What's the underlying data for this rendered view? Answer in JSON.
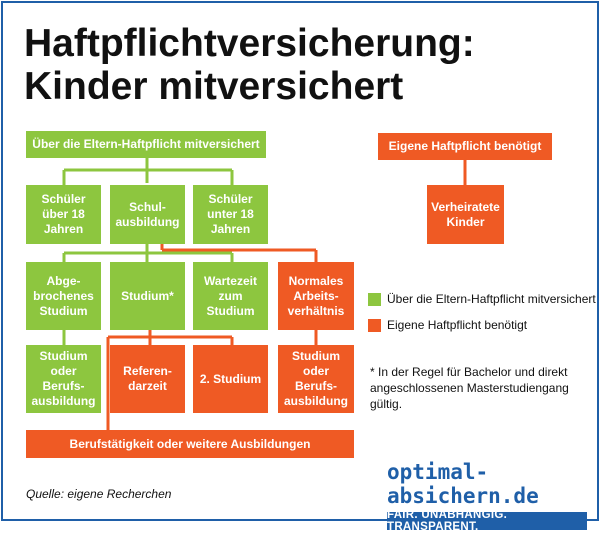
{
  "title": "Haftpflichtversicherung: Kinder mitversichert",
  "colors": {
    "green": "#8dc63f",
    "orange": "#ef5a24",
    "brand": "#1f5fa8"
  },
  "boxes": {
    "top": "Über die Eltern-Haftpflicht mitversichert",
    "schueler_ueber": "Schüler über 18 Jahren",
    "schulausbildung": "Schul­ausbildung",
    "schueler_unter": "Schüler unter 18 Jahren",
    "abgebrochen": "Abge­brochenes Studium",
    "studium": "Studium*",
    "wartezeit": "Wartezeit zum Studium",
    "arbeitsverhaeltnis": "Normales Arbeits­verhältnis",
    "studium_ausbildung_green": "Studium oder Berufs­ausbildung",
    "referendarzeit": "Referen­darzeit",
    "zweites_studium": "2. Studium",
    "studium_ausbildung_orange": "Studium oder Berufs­ausbildung",
    "berufstaetigkeit": "Berufstätigkeit oder weitere Ausbildungen",
    "eigene_header": "Eigene Haftpflicht benötigt",
    "verheiratete": "Verheiratete Kinder"
  },
  "legend": {
    "green_label": "Über die Eltern-Haftpflicht mitversichert",
    "orange_label": "Eigene Haftpflicht benötigt"
  },
  "footnote": "* In der Regel für Bachelor und direkt angeschlossenen Masterstudiengang gültig.",
  "source": "Quelle: eigene Recherchen",
  "brand": {
    "name": "optimal-absichern.de",
    "slogan": "FAIR. UNABHÄNGIG. TRANSPARENT."
  }
}
